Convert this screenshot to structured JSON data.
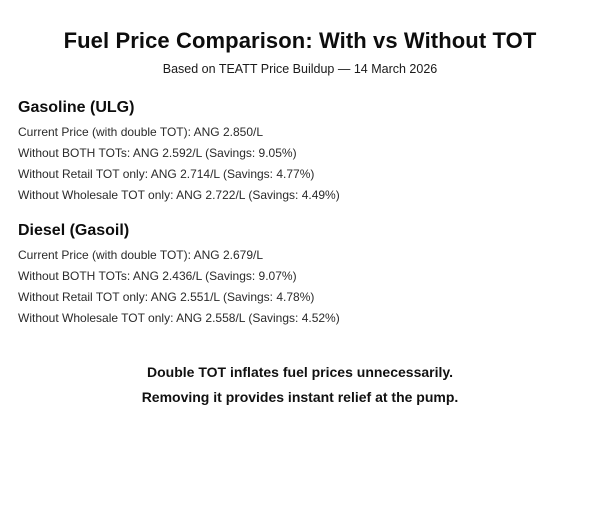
{
  "header": {
    "title": "Fuel Price Comparison: With vs Without TOT",
    "subtitle": "Based on TEATT Price Buildup — 14 March 2026"
  },
  "sections": [
    {
      "heading": "Gasoline (ULG)",
      "lines": [
        "Current Price (with double TOT): ANG 2.850/L",
        "Without BOTH TOTs: ANG 2.592/L (Savings: 9.05%)",
        "Without Retail TOT only: ANG 2.714/L (Savings: 4.77%)",
        "Without Wholesale TOT only: ANG 2.722/L (Savings: 4.49%)"
      ]
    },
    {
      "heading": "Diesel (Gasoil)",
      "lines": [
        "Current Price (with double TOT): ANG 2.679/L",
        "Without BOTH TOTs: ANG 2.436/L (Savings: 9.07%)",
        "Without Retail TOT only: ANG 2.551/L (Savings: 4.78%)",
        "Without Wholesale TOT only: ANG 2.558/L (Savings: 4.52%)"
      ]
    }
  ],
  "closing": {
    "line1": "Double TOT inflates fuel prices unnecessarily.",
    "line2": "Removing it provides instant relief at the pump."
  }
}
